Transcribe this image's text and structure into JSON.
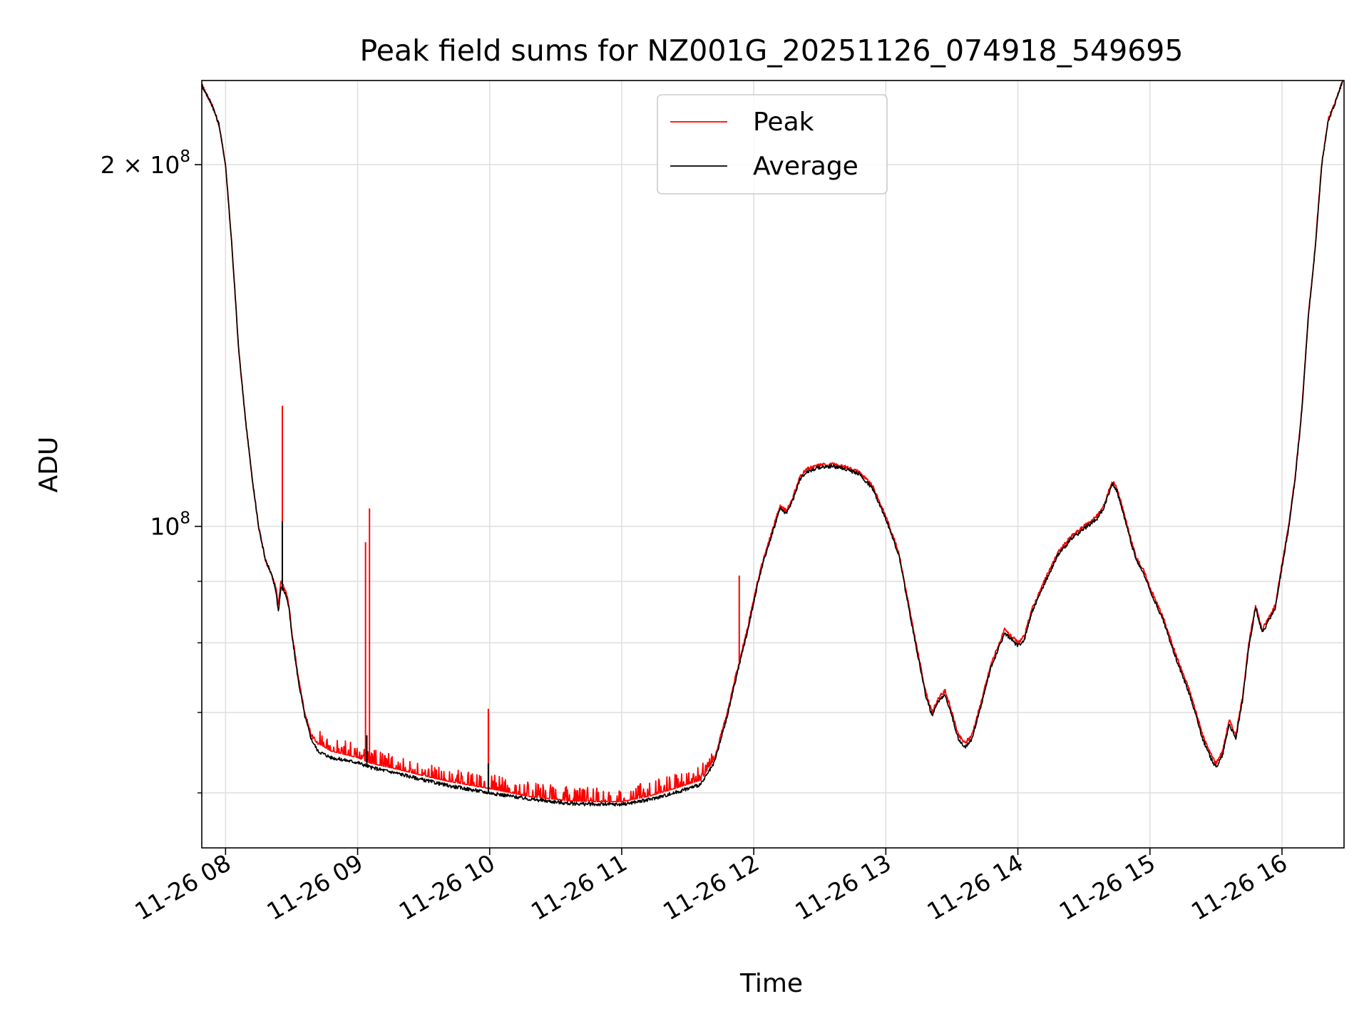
{
  "chart_data": {
    "type": "line",
    "title": "Peak field sums for NZ001G_20251126_074918_549695",
    "xlabel": "Time",
    "ylabel": "ADU",
    "yscale": "log",
    "ylim": [
      54000000,
      235000000
    ],
    "xlim": [
      7.82,
      16.47
    ],
    "grid": true,
    "legend_position": "upper center",
    "x_ticks": [
      {
        "value": 8,
        "label": "11-26 08"
      },
      {
        "value": 9,
        "label": "11-26 09"
      },
      {
        "value": 10,
        "label": "11-26 10"
      },
      {
        "value": 11,
        "label": "11-26 11"
      },
      {
        "value": 12,
        "label": "11-26 12"
      },
      {
        "value": 13,
        "label": "11-26 13"
      },
      {
        "value": 14,
        "label": "11-26 14"
      },
      {
        "value": 15,
        "label": "11-26 15"
      },
      {
        "value": 16,
        "label": "11-26 16"
      }
    ],
    "y_major_ticks": [
      {
        "value": 100000000,
        "base": "10",
        "exp": "8",
        "prefix": ""
      },
      {
        "value": 200000000,
        "base": "10",
        "exp": "8",
        "prefix": "2 × "
      }
    ],
    "y_minor_ticks": [
      60000000,
      70000000,
      80000000,
      90000000
    ],
    "series": [
      {
        "name": "Peak",
        "color": "#ff0000",
        "x": [
          7.82,
          7.9,
          7.95,
          8.0,
          8.05,
          8.1,
          8.15,
          8.2,
          8.25,
          8.3,
          8.35,
          8.38,
          8.4,
          8.42,
          8.44,
          8.46,
          8.48,
          8.5,
          8.55,
          8.6,
          8.65,
          8.7,
          8.8,
          9.0,
          9.1,
          9.3,
          9.5,
          9.7,
          10.0,
          10.3,
          10.6,
          10.8,
          11.0,
          11.2,
          11.4,
          11.6,
          11.7,
          11.8,
          11.85,
          11.9,
          11.95,
          12.0,
          12.05,
          12.1,
          12.15,
          12.2,
          12.25,
          12.3,
          12.35,
          12.4,
          12.5,
          12.6,
          12.7,
          12.8,
          12.9,
          13.0,
          13.1,
          13.2,
          13.3,
          13.35,
          13.4,
          13.45,
          13.5,
          13.55,
          13.6,
          13.65,
          13.7,
          13.8,
          13.9,
          14.0,
          14.05,
          14.1,
          14.2,
          14.3,
          14.4,
          14.5,
          14.6,
          14.65,
          14.7,
          14.72,
          14.75,
          14.8,
          14.85,
          14.9,
          14.95,
          15.0,
          15.1,
          15.2,
          15.3,
          15.35,
          15.4,
          15.45,
          15.5,
          15.55,
          15.6,
          15.65,
          15.7,
          15.75,
          15.8,
          15.85,
          15.9,
          15.95,
          16.0,
          16.05,
          16.1,
          16.15,
          16.2,
          16.25,
          16.3,
          16.35,
          16.4,
          16.47
        ],
        "values": [
          233000000,
          224000000,
          216000000,
          200000000,
          170000000,
          140000000,
          123000000,
          110000000,
          100000000,
          94000000,
          91000000,
          89000000,
          86000000,
          90000000,
          89000000,
          88000000,
          86000000,
          82000000,
          75000000,
          70000000,
          67000000,
          66000000,
          65000000,
          64200000,
          63500000,
          62800000,
          62000000,
          61300000,
          60500000,
          59600000,
          59100000,
          59000000,
          59000000,
          59600000,
          60500000,
          61500000,
          64000000,
          70000000,
          74000000,
          78000000,
          82000000,
          87000000,
          92000000,
          96000000,
          100000000,
          104000000,
          103000000,
          106000000,
          110000000,
          111500000,
          112500000,
          112600000,
          112000000,
          111000000,
          108000000,
          102000000,
          95000000,
          83000000,
          73000000,
          70000000,
          72000000,
          73000000,
          70000000,
          67000000,
          66000000,
          67000000,
          70000000,
          77000000,
          82000000,
          80000000,
          81000000,
          85000000,
          90000000,
          95000000,
          98000000,
          100000000,
          102000000,
          104000000,
          108000000,
          109000000,
          107500000,
          103000000,
          98000000,
          94000000,
          92000000,
          89000000,
          84000000,
          78000000,
          73000000,
          70000000,
          67000000,
          65000000,
          63500000,
          65000000,
          69000000,
          67000000,
          72000000,
          80000000,
          86000000,
          82000000,
          84000000,
          86000000,
          93000000,
          100000000,
          110000000,
          125000000,
          150000000,
          170000000,
          200000000,
          218000000,
          225000000,
          237000000
        ],
        "spikes": [
          {
            "x": 8.43,
            "value": 126000000
          },
          {
            "x": 9.06,
            "value": 97000000
          },
          {
            "x": 9.09,
            "value": 103500000
          },
          {
            "x": 9.99,
            "value": 70500000
          },
          {
            "x": 11.89,
            "value": 91000000
          }
        ]
      },
      {
        "name": "Average",
        "color": "#000000",
        "x": [
          7.82,
          7.9,
          7.95,
          8.0,
          8.05,
          8.1,
          8.15,
          8.2,
          8.25,
          8.3,
          8.35,
          8.38,
          8.4,
          8.42,
          8.44,
          8.46,
          8.48,
          8.5,
          8.55,
          8.6,
          8.65,
          8.7,
          8.8,
          9.0,
          9.1,
          9.3,
          9.5,
          9.7,
          10.0,
          10.3,
          10.6,
          10.8,
          11.0,
          11.2,
          11.4,
          11.6,
          11.7,
          11.8,
          11.85,
          11.9,
          11.95,
          12.0,
          12.05,
          12.1,
          12.15,
          12.2,
          12.25,
          12.3,
          12.35,
          12.4,
          12.5,
          12.6,
          12.7,
          12.8,
          12.9,
          13.0,
          13.1,
          13.2,
          13.3,
          13.35,
          13.4,
          13.45,
          13.5,
          13.55,
          13.6,
          13.65,
          13.7,
          13.8,
          13.9,
          14.0,
          14.05,
          14.1,
          14.2,
          14.3,
          14.4,
          14.5,
          14.6,
          14.65,
          14.7,
          14.72,
          14.75,
          14.8,
          14.85,
          14.9,
          14.95,
          15.0,
          15.1,
          15.2,
          15.3,
          15.35,
          15.4,
          15.45,
          15.5,
          15.55,
          15.6,
          15.65,
          15.7,
          15.75,
          15.8,
          15.85,
          15.9,
          15.95,
          16.0,
          16.05,
          16.1,
          16.15,
          16.2,
          16.25,
          16.3,
          16.35,
          16.4,
          16.47
        ],
        "values": [
          233000000,
          224000000,
          216000000,
          200000000,
          170000000,
          140000000,
          123000000,
          110000000,
          100000000,
          94000000,
          91000000,
          88500000,
          85000000,
          89000000,
          88500000,
          87500000,
          85500000,
          81500000,
          74500000,
          69500000,
          66500000,
          65000000,
          64200000,
          63600000,
          63000000,
          62300000,
          61500000,
          60800000,
          60000000,
          59300000,
          58800000,
          58700000,
          58700000,
          59200000,
          60000000,
          61000000,
          63500000,
          69500000,
          73500000,
          77500000,
          81500000,
          86500000,
          91500000,
          95500000,
          99500000,
          103500000,
          102500000,
          105500000,
          109500000,
          111000000,
          112000000,
          112200000,
          111600000,
          110500000,
          107500000,
          101500000,
          94500000,
          82500000,
          72500000,
          69500000,
          71500000,
          72500000,
          69500000,
          66500000,
          65500000,
          66500000,
          69500000,
          76500000,
          81500000,
          79500000,
          80500000,
          84500000,
          89500000,
          94500000,
          97500000,
          99500000,
          101500000,
          103500000,
          107500000,
          108500000,
          107000000,
          102500000,
          97500000,
          93500000,
          91500000,
          88500000,
          83500000,
          77500000,
          72500000,
          69500000,
          66500000,
          64500000,
          63000000,
          64500000,
          68500000,
          66500000,
          71500000,
          79500000,
          85500000,
          81500000,
          83500000,
          85500000,
          92500000,
          99500000,
          109500000,
          124500000,
          149500000,
          169500000,
          199500000,
          217500000,
          224500000,
          236500000
        ],
        "spikes": [
          {
            "x": 8.43,
            "value": 101000000
          },
          {
            "x": 9.07,
            "value": 67000000
          },
          {
            "x": 9.99,
            "value": 63500000
          }
        ]
      }
    ]
  }
}
